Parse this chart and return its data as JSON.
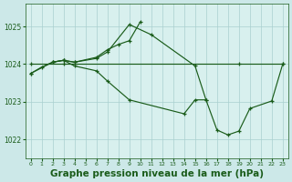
{
  "background_color": "#cce8e8",
  "plot_bg_color": "#d8f0ee",
  "grid_color": "#aacfcf",
  "line_color": "#1a5c1a",
  "xlabel": "Graphe pression niveau de la mer (hPa)",
  "xlabel_fontsize": 7.5,
  "ylabel_ticks": [
    1022,
    1023,
    1024,
    1025
  ],
  "xlim": [
    -0.5,
    23.5
  ],
  "ylim": [
    1021.5,
    1025.6
  ],
  "xticks": [
    0,
    1,
    2,
    3,
    4,
    5,
    6,
    7,
    8,
    9,
    10,
    11,
    12,
    13,
    14,
    15,
    16,
    17,
    18,
    19,
    20,
    21,
    22,
    23
  ],
  "line1_x": [
    0,
    1,
    2,
    3,
    4,
    6,
    7,
    9,
    11,
    15,
    16
  ],
  "line1_y": [
    1023.75,
    1023.92,
    1024.05,
    1024.1,
    1024.05,
    1024.15,
    1024.32,
    1025.05,
    1024.78,
    1023.95,
    1023.05
  ],
  "line2_x": [
    2,
    3,
    4,
    6,
    7,
    8,
    9,
    10
  ],
  "line2_y": [
    1024.05,
    1024.1,
    1024.05,
    1024.18,
    1024.38,
    1024.52,
    1024.62,
    1025.12
  ],
  "line3_x": [
    0,
    3,
    19,
    23
  ],
  "line3_y": [
    1024.02,
    1024.02,
    1024.02,
    1024.02
  ],
  "line4_x": [
    0,
    2,
    3,
    4,
    6,
    7,
    9,
    14,
    15,
    16,
    17,
    18,
    19,
    20,
    22,
    23
  ],
  "line4_y": [
    1023.75,
    1024.05,
    1024.1,
    1023.95,
    1023.82,
    1023.55,
    1023.05,
    1022.68,
    1023.05,
    1023.05,
    1022.25,
    1022.12,
    1022.22,
    1022.82,
    1023.02,
    1024.0
  ]
}
